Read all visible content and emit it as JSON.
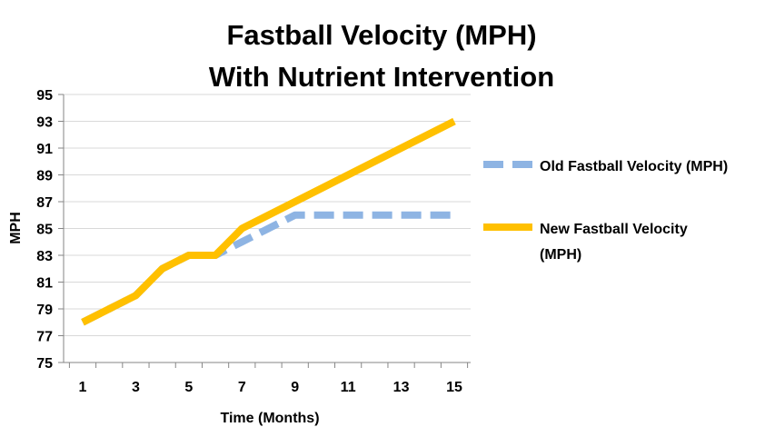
{
  "chart_data": {
    "type": "line",
    "title_lines": [
      "Fastball Velocity (MPH)",
      "With Nutrient Intervention"
    ],
    "xlabel": "Time (Months)",
    "ylabel": "MPH",
    "xlim": [
      1,
      15
    ],
    "ylim": [
      75,
      95
    ],
    "x": [
      1,
      2,
      3,
      4,
      5,
      6,
      7,
      8,
      9,
      10,
      11,
      12,
      13,
      14,
      15
    ],
    "x_ticks": [
      "1",
      "3",
      "5",
      "7",
      "9",
      "11",
      "13",
      "15"
    ],
    "y_ticks": [
      "75",
      "77",
      "79",
      "81",
      "83",
      "85",
      "87",
      "89",
      "91",
      "93",
      "95"
    ],
    "grid": true,
    "legend_position": "right",
    "series": [
      {
        "name": "Old Fastball Velocity (MPH)",
        "legend_lines": [
          "Old Fastball Velocity (MPH)"
        ],
        "color": "#8EB4E3",
        "style": "dashed",
        "values": [
          78,
          79,
          80,
          82,
          83,
          83,
          84,
          85,
          86,
          86,
          86,
          86,
          86,
          86,
          86
        ]
      },
      {
        "name": "New Fastball Velocity (MPH)",
        "legend_lines": [
          "New Fastball Velocity",
          "(MPH)"
        ],
        "color": "#FFC000",
        "style": "solid",
        "values": [
          78,
          79,
          80,
          82,
          83,
          83,
          85,
          86,
          87,
          88,
          89,
          90,
          91,
          92,
          93
        ]
      }
    ]
  }
}
